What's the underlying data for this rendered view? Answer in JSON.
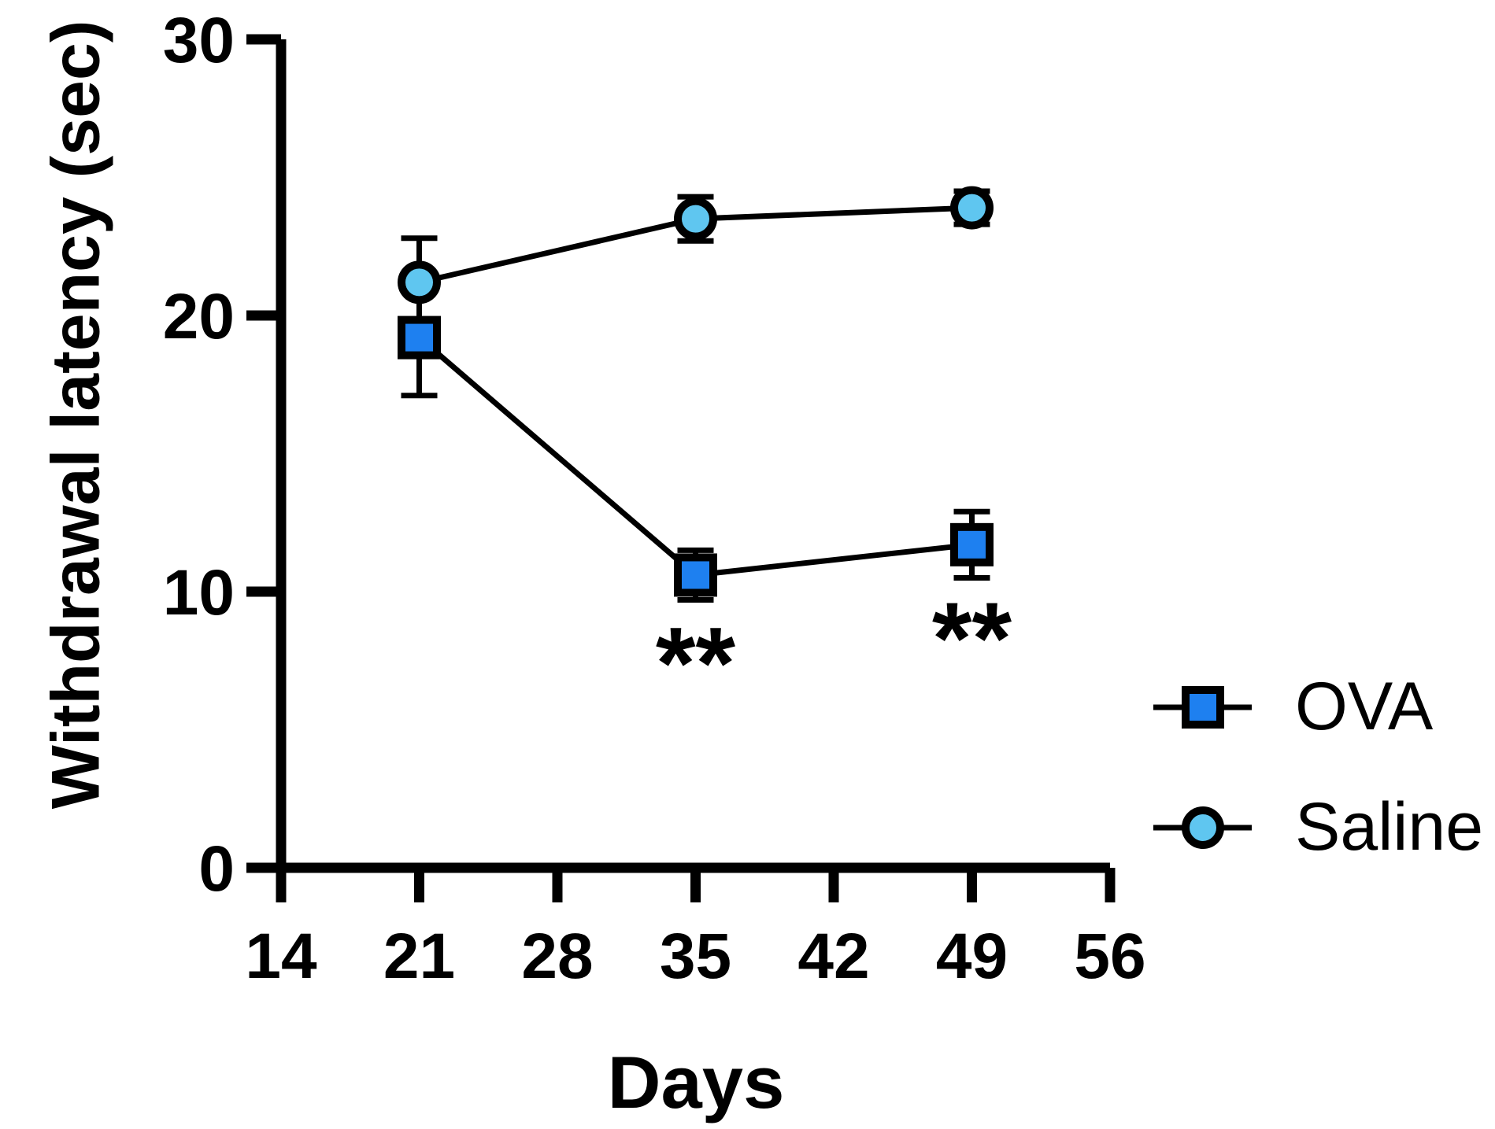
{
  "chart_data": {
    "type": "line",
    "title": "",
    "xlabel": "Days",
    "ylabel": "Withdrawal latency (sec)",
    "x": [
      21,
      35,
      49
    ],
    "series": [
      {
        "name": "OVA",
        "marker": "square",
        "color": "#1E80F0",
        "values": [
          19.2,
          10.6,
          11.7
        ],
        "errors": [
          2.1,
          0.9,
          1.2
        ]
      },
      {
        "name": "Saline",
        "marker": "circle",
        "color": "#5FC6F0",
        "values": [
          21.2,
          23.5,
          23.9
        ],
        "errors": [
          1.6,
          0.8,
          0.6
        ]
      }
    ],
    "xlim": [
      14,
      56
    ],
    "ylim": [
      0,
      30
    ],
    "x_ticks": [
      14,
      21,
      28,
      35,
      42,
      49,
      56
    ],
    "y_ticks": [
      0,
      10,
      20,
      30
    ],
    "grid": false,
    "legend_position": "right-middle",
    "axis_color": "#000000",
    "annotations": [
      {
        "text": "**",
        "x": 35,
        "y": 8.1
      },
      {
        "text": "**",
        "x": 49,
        "y": 9.0
      }
    ]
  }
}
